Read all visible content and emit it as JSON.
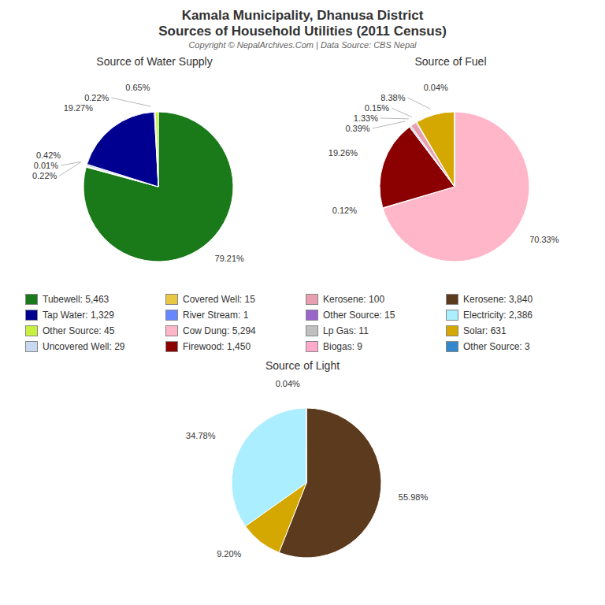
{
  "title": "Kamala Municipality, Dhanusa District",
  "subtitle": "Sources of Household Utilities (2011 Census)",
  "annotations": [
    "Copyright © NepalArchives.Com | Data Source: CBS Nepal"
  ],
  "legend_entries": [
    {
      "name": "Tubewell: 5,463",
      "color": "#1a7a1a"
    },
    {
      "name": "Tap Water: 1,329",
      "color": "#000090"
    },
    {
      "name": "Other Source: 45",
      "color": "#c8f040"
    },
    {
      "name": "Uncovered Well: 29",
      "color": "#c8d8f0"
    },
    {
      "name": "Covered Well: 15",
      "color": "#e8c840"
    },
    {
      "name": "River Stream: 1",
      "color": "#6688ff"
    },
    {
      "name": "Cow Dung: 5,294",
      "color": "#ffb6c8"
    },
    {
      "name": "Firewood: 1,450",
      "color": "#8b0000"
    },
    {
      "name": "Kerosene: 100",
      "color": "#e8a0b0"
    },
    {
      "name": "Other Source: 15",
      "color": "#9966cc"
    },
    {
      "name": "Lp Gas: 11",
      "color": "#c0c0c0"
    },
    {
      "name": "Biogas: 9",
      "color": "#ffaacc"
    },
    {
      "name": "Kerosene: 3,840",
      "color": "#5c3a1e"
    },
    {
      "name": "Electricity: 2,386",
      "color": "#aaeeff"
    },
    {
      "name": "Solar: 631",
      "color": "#d4a800"
    },
    {
      "name": "Other Source: 3",
      "color": "#3388cc"
    }
  ],
  "chart_data": [
    {
      "type": "pie",
      "title": "Source of Water Supply",
      "values": [
        79.21,
        0.22,
        0.01,
        0.42,
        19.27,
        0.22,
        0.65
      ],
      "value_labels": [
        "79.21%",
        "0.22%",
        "0.01%",
        "0.42%",
        "19.27%",
        "0.22%",
        "0.65%"
      ],
      "colors": [
        "#1a7a1a",
        "#e8c840",
        "#6688ff",
        "#c8d8f0",
        "#000090",
        "#9966cc",
        "#c8f040"
      ],
      "data_labels": true
    },
    {
      "type": "pie",
      "title": "Source of Fuel",
      "values": [
        70.33,
        0.12,
        19.26,
        0.39,
        1.33,
        0.15,
        8.38,
        0.04
      ],
      "value_labels": [
        "70.33%",
        "0.12%",
        "19.26%",
        "0.39%",
        "1.33%",
        "0.15%",
        "8.38%",
        "0.04%"
      ],
      "colors": [
        "#ffb6c8",
        "#ffaacc",
        "#8b0000",
        "#c0d8e8",
        "#e8a0b0",
        "#c0c0c0",
        "#d4a800",
        "#66ccff"
      ],
      "data_labels": true
    },
    {
      "type": "pie",
      "title": "Source of Light",
      "values": [
        55.98,
        9.2,
        34.78,
        0.04
      ],
      "value_labels": [
        "55.98%",
        "9.20%",
        "34.78%",
        "0.04%"
      ],
      "colors": [
        "#5c3a1e",
        "#d4a800",
        "#aaeeff",
        "#3388cc"
      ],
      "data_labels": true
    }
  ]
}
